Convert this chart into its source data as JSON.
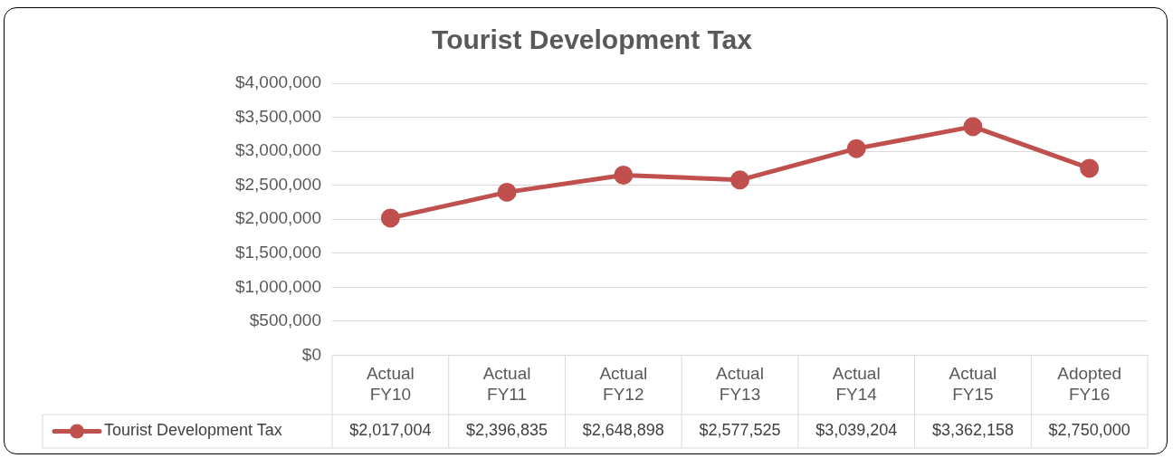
{
  "chart_data": {
    "type": "line",
    "title": "Tourist Development Tax",
    "categories": [
      "Actual FY10",
      "Actual FY11",
      "Actual FY12",
      "Actual FY13",
      "Actual FY14",
      "Actual FY15",
      "Adopted FY16"
    ],
    "series": [
      {
        "name": "Tourist Development Tax",
        "color": "#c0504d",
        "values": [
          2017004,
          2396835,
          2648898,
          2577525,
          3039204,
          3362158,
          2750000
        ],
        "value_labels": [
          "$2,017,004",
          "$2,396,835",
          "$2,648,898",
          "$2,577,525",
          "$3,039,204",
          "$3,362,158",
          "$2,750,000"
        ]
      }
    ],
    "ylim": [
      0,
      4000000
    ],
    "yticks": [
      {
        "value": 0,
        "label": "$0"
      },
      {
        "value": 500000,
        "label": "$500,000"
      },
      {
        "value": 1000000,
        "label": "$1,000,000"
      },
      {
        "value": 1500000,
        "label": "$1,500,000"
      },
      {
        "value": 2000000,
        "label": "$2,000,000"
      },
      {
        "value": 2500000,
        "label": "$2,500,000"
      },
      {
        "value": 3000000,
        "label": "$3,000,000"
      },
      {
        "value": 3500000,
        "label": "$3,500,000"
      },
      {
        "value": 4000000,
        "label": "$4,000,000"
      }
    ],
    "grid": "y",
    "legend": "bottom",
    "marker": "circle",
    "line_style": "solid"
  }
}
